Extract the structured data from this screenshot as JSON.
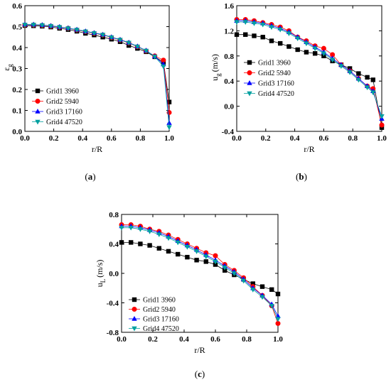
{
  "chart_data": [
    {
      "type": "line",
      "xlabel": "r/R",
      "ylabel_main": "ε",
      "ylabel_sub": "g",
      "ylabel_unit": "",
      "xlim": [
        0,
        1.0
      ],
      "ylim": [
        0,
        0.6
      ],
      "xticks": [
        "0.0",
        "0.2",
        "0.4",
        "0.6",
        "0.8",
        "1.0"
      ],
      "yticks": [
        "0.0",
        "0.1",
        "0.2",
        "0.3",
        "0.4",
        "0.5",
        "0.6"
      ],
      "legend_position": "bottom-left",
      "caption_open": "(",
      "caption_letter": "a",
      "caption_close": ")",
      "series": [
        {
          "name": "Grid1 3960",
          "color": "#000000",
          "marker": "square",
          "x": [
            0,
            0.06,
            0.12,
            0.18,
            0.24,
            0.3,
            0.36,
            0.42,
            0.48,
            0.54,
            0.6,
            0.66,
            0.72,
            0.78,
            0.84,
            0.9,
            0.96,
            1.0
          ],
          "y": [
            0.505,
            0.504,
            0.502,
            0.498,
            0.492,
            0.486,
            0.478,
            0.468,
            0.46,
            0.45,
            0.44,
            0.428,
            0.41,
            0.396,
            0.38,
            0.356,
            0.33,
            0.14
          ]
        },
        {
          "name": "Grid2 5940",
          "color": "#ff0000",
          "marker": "circle",
          "x": [
            0,
            0.06,
            0.12,
            0.18,
            0.24,
            0.3,
            0.36,
            0.42,
            0.48,
            0.54,
            0.6,
            0.66,
            0.72,
            0.78,
            0.84,
            0.9,
            0.96,
            1.0
          ],
          "y": [
            0.508,
            0.508,
            0.506,
            0.502,
            0.497,
            0.492,
            0.484,
            0.476,
            0.468,
            0.46,
            0.448,
            0.436,
            0.422,
            0.404,
            0.384,
            0.36,
            0.34,
            0.09
          ]
        },
        {
          "name": "Grid3 17160",
          "color": "#0000ff",
          "marker": "triangle-up",
          "x": [
            0,
            0.06,
            0.12,
            0.18,
            0.24,
            0.3,
            0.36,
            0.42,
            0.48,
            0.54,
            0.6,
            0.66,
            0.72,
            0.78,
            0.84,
            0.9,
            0.96,
            1.0
          ],
          "y": [
            0.51,
            0.51,
            0.508,
            0.504,
            0.499,
            0.493,
            0.486,
            0.478,
            0.47,
            0.462,
            0.45,
            0.438,
            0.424,
            0.406,
            0.386,
            0.358,
            0.32,
            0.04
          ]
        },
        {
          "name": "Grid4 47520",
          "color": "#00a0a0",
          "marker": "triangle-down",
          "x": [
            0,
            0.06,
            0.12,
            0.18,
            0.24,
            0.3,
            0.36,
            0.42,
            0.48,
            0.54,
            0.6,
            0.66,
            0.72,
            0.78,
            0.84,
            0.9,
            0.96,
            1.0
          ],
          "y": [
            0.509,
            0.509,
            0.507,
            0.503,
            0.498,
            0.492,
            0.485,
            0.477,
            0.469,
            0.461,
            0.449,
            0.437,
            0.423,
            0.405,
            0.385,
            0.357,
            0.31,
            0.02
          ]
        }
      ]
    },
    {
      "type": "line",
      "xlabel": "r/R",
      "ylabel_main": "u",
      "ylabel_sub": "g",
      "ylabel_unit": "(m/s)",
      "xlim": [
        0,
        1.0
      ],
      "ylim": [
        -0.4,
        1.6
      ],
      "xticks": [
        "0.0",
        "0.2",
        "0.4",
        "0.6",
        "0.8",
        "1.0"
      ],
      "yticks": [
        "-0.4",
        "0.0",
        "0.4",
        "0.8",
        "1.2",
        "1.6"
      ],
      "legend_position": "center-left",
      "caption_open": "(",
      "caption_letter": "b",
      "caption_close": ")",
      "series": [
        {
          "name": "Grid1 3960",
          "color": "#000000",
          "marker": "square",
          "x": [
            0,
            0.06,
            0.12,
            0.18,
            0.24,
            0.3,
            0.36,
            0.42,
            0.48,
            0.54,
            0.6,
            0.66,
            0.72,
            0.78,
            0.84,
            0.9,
            0.94,
            1.0
          ],
          "y": [
            1.14,
            1.14,
            1.12,
            1.1,
            1.04,
            1.0,
            0.95,
            0.9,
            0.86,
            0.84,
            0.8,
            0.72,
            0.66,
            0.6,
            0.52,
            0.46,
            0.42,
            -0.34
          ]
        },
        {
          "name": "Grid2 5940",
          "color": "#ff0000",
          "marker": "circle",
          "x": [
            0,
            0.06,
            0.12,
            0.18,
            0.24,
            0.3,
            0.36,
            0.42,
            0.48,
            0.54,
            0.6,
            0.66,
            0.72,
            0.78,
            0.84,
            0.9,
            0.94,
            1.0
          ],
          "y": [
            1.38,
            1.38,
            1.36,
            1.33,
            1.3,
            1.26,
            1.2,
            1.1,
            1.04,
            0.96,
            0.92,
            0.82,
            0.66,
            0.56,
            0.44,
            0.32,
            0.28,
            -0.3
          ]
        },
        {
          "name": "Grid3 17160",
          "color": "#0000ff",
          "marker": "triangle-up",
          "x": [
            0,
            0.06,
            0.12,
            0.18,
            0.24,
            0.3,
            0.36,
            0.42,
            0.48,
            0.54,
            0.6,
            0.66,
            0.72,
            0.78,
            0.84,
            0.9,
            0.94,
            1.0
          ],
          "y": [
            1.36,
            1.36,
            1.34,
            1.32,
            1.28,
            1.24,
            1.18,
            1.1,
            1.02,
            0.94,
            0.86,
            0.76,
            0.66,
            0.56,
            0.44,
            0.32,
            0.24,
            -0.2
          ]
        },
        {
          "name": "Grid4 47520",
          "color": "#00a0a0",
          "marker": "triangle-down",
          "x": [
            0,
            0.06,
            0.12,
            0.18,
            0.24,
            0.3,
            0.36,
            0.42,
            0.48,
            0.54,
            0.6,
            0.66,
            0.72,
            0.78,
            0.84,
            0.9,
            0.94,
            1.0
          ],
          "y": [
            1.34,
            1.34,
            1.32,
            1.3,
            1.26,
            1.22,
            1.16,
            1.08,
            1.0,
            0.92,
            0.84,
            0.74,
            0.64,
            0.54,
            0.42,
            0.3,
            0.22,
            -0.16
          ]
        }
      ]
    },
    {
      "type": "line",
      "xlabel": "r/R",
      "ylabel_main": "u",
      "ylabel_sub": "L",
      "ylabel_unit": "(m/s)",
      "xlim": [
        0,
        1.0
      ],
      "ylim": [
        -0.8,
        0.8
      ],
      "xticks": [
        "0.0",
        "0.2",
        "0.4",
        "0.6",
        "0.8",
        "1.0"
      ],
      "yticks": [
        "-0.8",
        "-0.4",
        "0.0",
        "0.4",
        "0.8"
      ],
      "legend_position": "bottom-left",
      "caption_open": "(",
      "caption_letter": "c",
      "caption_close": ")",
      "series": [
        {
          "name": "Grid1 3960",
          "color": "#000000",
          "marker": "square",
          "x": [
            0,
            0.06,
            0.12,
            0.18,
            0.24,
            0.3,
            0.36,
            0.42,
            0.48,
            0.54,
            0.6,
            0.66,
            0.72,
            0.78,
            0.84,
            0.9,
            0.96,
            1.0
          ],
          "y": [
            0.42,
            0.42,
            0.4,
            0.38,
            0.34,
            0.3,
            0.26,
            0.22,
            0.18,
            0.16,
            0.12,
            0.04,
            -0.02,
            -0.08,
            -0.14,
            -0.18,
            -0.22,
            -0.28
          ]
        },
        {
          "name": "Grid2 5940",
          "color": "#ff0000",
          "marker": "circle",
          "x": [
            0,
            0.06,
            0.12,
            0.18,
            0.24,
            0.3,
            0.36,
            0.42,
            0.48,
            0.54,
            0.6,
            0.66,
            0.72,
            0.78,
            0.84,
            0.9,
            0.96,
            1.0
          ],
          "y": [
            0.66,
            0.66,
            0.64,
            0.6,
            0.57,
            0.52,
            0.46,
            0.4,
            0.34,
            0.28,
            0.24,
            0.12,
            0.04,
            -0.06,
            -0.18,
            -0.3,
            -0.44,
            -0.68
          ]
        },
        {
          "name": "Grid3 17160",
          "color": "#0000ff",
          "marker": "triangle-up",
          "x": [
            0,
            0.06,
            0.12,
            0.18,
            0.24,
            0.3,
            0.36,
            0.42,
            0.48,
            0.54,
            0.6,
            0.66,
            0.72,
            0.78,
            0.84,
            0.9,
            0.96,
            1.0
          ],
          "y": [
            0.64,
            0.64,
            0.62,
            0.59,
            0.55,
            0.5,
            0.44,
            0.38,
            0.32,
            0.25,
            0.18,
            0.1,
            0.02,
            -0.08,
            -0.2,
            -0.3,
            -0.42,
            -0.58
          ]
        },
        {
          "name": "Grid4 47520",
          "color": "#00a0a0",
          "marker": "triangle-down",
          "x": [
            0,
            0.06,
            0.12,
            0.18,
            0.24,
            0.3,
            0.36,
            0.42,
            0.48,
            0.54,
            0.6,
            0.66,
            0.72,
            0.78,
            0.84,
            0.9,
            0.96,
            1.0
          ],
          "y": [
            0.62,
            0.62,
            0.6,
            0.57,
            0.53,
            0.48,
            0.42,
            0.36,
            0.3,
            0.23,
            0.16,
            0.08,
            0.0,
            -0.1,
            -0.22,
            -0.32,
            -0.44,
            -0.62
          ]
        }
      ]
    }
  ]
}
